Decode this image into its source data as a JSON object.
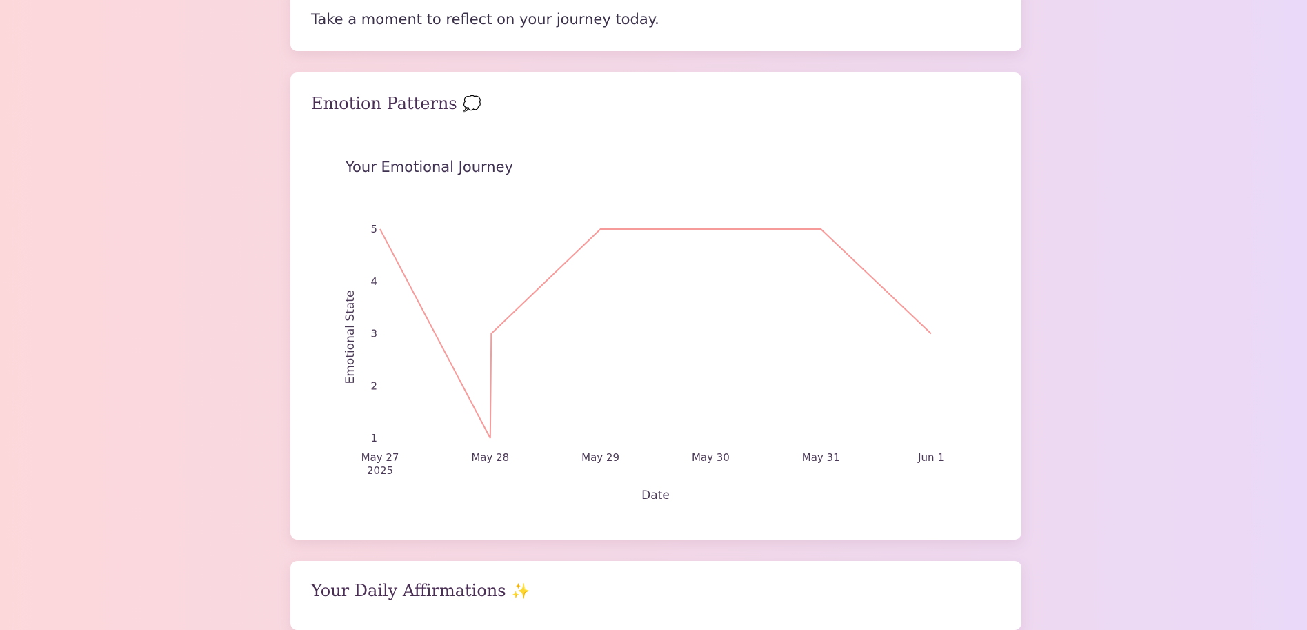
{
  "top_card": {
    "message": "Take a moment to reflect on your journey today."
  },
  "emotion_card": {
    "title": "Emotion Patterns",
    "emoji": "💭"
  },
  "affirmations_card": {
    "title": "Your Daily Affirmations",
    "emoji": "✨"
  },
  "chart_data": {
    "type": "line",
    "title": "Your Emotional Journey",
    "xlabel": "Date",
    "ylabel": "Emotional State",
    "x": [
      "2025-05-27",
      "2025-05-28",
      "2025-05-28",
      "2025-05-29",
      "2025-05-30",
      "2025-05-31",
      "2025-06-01"
    ],
    "x_ticks": [
      "May 27\n2025",
      "May 28",
      "May 29",
      "May 30",
      "May 31",
      "Jun 1"
    ],
    "y_ticks": [
      1,
      2,
      3,
      4,
      5
    ],
    "ylim": [
      1,
      5
    ],
    "series": [
      {
        "values": [
          5,
          1,
          3,
          5,
          5,
          5,
          3
        ],
        "color": "#f79a9a"
      }
    ],
    "grid": false
  }
}
